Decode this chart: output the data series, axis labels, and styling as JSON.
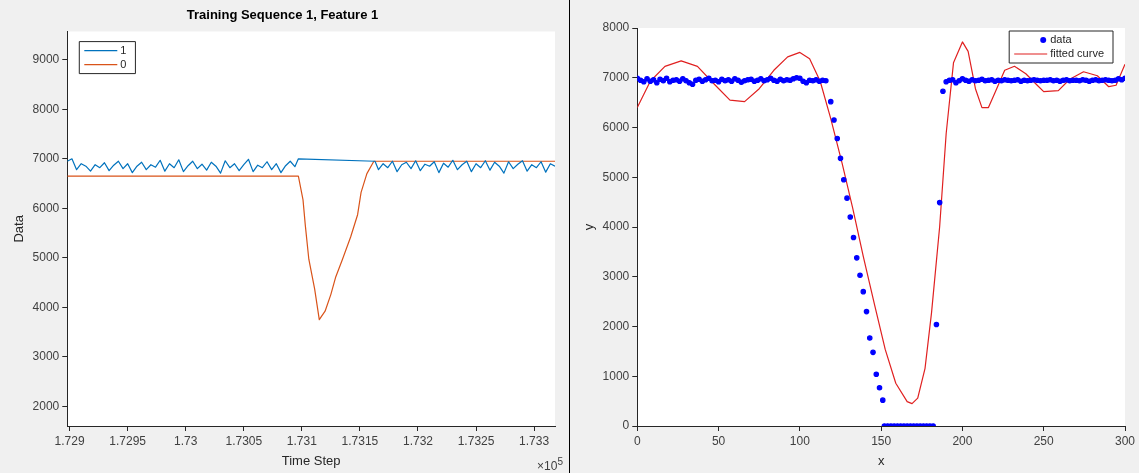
{
  "chart_data": [
    {
      "type": "line",
      "title": "Training Sequence 1, Feature 1",
      "xlabel": "Time Step",
      "ylabel": "Data",
      "xlim": [
        1.72898,
        1.73318
      ],
      "ylim": [
        1600,
        9570
      ],
      "xticks": [
        1.729,
        1.7295,
        1.73,
        1.7305,
        1.731,
        1.7315,
        1.732,
        1.7325,
        1.733
      ],
      "yticks": [
        2000,
        3000,
        4000,
        5000,
        6000,
        7000,
        8000,
        9000
      ],
      "legend": "top left",
      "annotations": [
        "×10$^{5}$"
      ],
      "series": [
        {
          "name": "1",
          "color": "#0072bd",
          "x": [
            1.72898,
            1.72902,
            1.72906,
            1.7291,
            1.72914,
            1.72918,
            1.72922,
            1.72926,
            1.7293,
            1.72934,
            1.72938,
            1.72942,
            1.72946,
            1.7295,
            1.72954,
            1.72958,
            1.72962,
            1.72966,
            1.7297,
            1.72974,
            1.72978,
            1.72982,
            1.72986,
            1.7299,
            1.72994,
            1.72998,
            1.73002,
            1.73006,
            1.7301,
            1.73014,
            1.73018,
            1.73022,
            1.73026,
            1.7303,
            1.73034,
            1.73038,
            1.73042,
            1.73046,
            1.7305,
            1.73054,
            1.73058,
            1.73062,
            1.73066,
            1.7307,
            1.73074,
            1.73078,
            1.73082,
            1.73086,
            1.7309,
            1.73094,
            1.73097,
            1.73163,
            1.73166,
            1.7317,
            1.73174,
            1.73178,
            1.73182,
            1.73186,
            1.7319,
            1.73194,
            1.73198,
            1.73202,
            1.73206,
            1.7321,
            1.73214,
            1.73218,
            1.73222,
            1.73226,
            1.7323,
            1.73234,
            1.73238,
            1.73242,
            1.73246,
            1.7325,
            1.73254,
            1.73258,
            1.73262,
            1.73266,
            1.7327,
            1.73274,
            1.73278,
            1.73282,
            1.73286,
            1.7329,
            1.73294,
            1.73298,
            1.73302,
            1.73306,
            1.7331,
            1.73314,
            1.73318
          ],
          "values": [
            6950,
            7000,
            6780,
            6900,
            6850,
            6750,
            6880,
            6820,
            6920,
            6760,
            6870,
            6950,
            6800,
            6900,
            6720,
            6850,
            6930,
            6780,
            6880,
            6830,
            6970,
            6750,
            6900,
            6820,
            6980,
            6740,
            6860,
            6950,
            6800,
            6890,
            6770,
            6930,
            6850,
            6710,
            6960,
            6820,
            6900,
            6760,
            6880,
            6990,
            6740,
            6870,
            6820,
            6940,
            6780,
            6900,
            6720,
            6860,
            6950,
            6840,
            7000,
            6950,
            6780,
            6900,
            6820,
            6950,
            6740,
            6880,
            6930,
            6800,
            6960,
            6760,
            6890,
            6850,
            6940,
            6720,
            6910,
            6830,
            6970,
            6780,
            6880,
            6950,
            6740,
            6900,
            6820,
            6960,
            6770,
            6930,
            6850,
            6710,
            6940,
            6800,
            6890,
            6960,
            6750,
            6880,
            6820,
            6940,
            6730,
            6900,
            6850
          ]
        },
        {
          "name": "0",
          "color": "#d95319",
          "x": [
            1.72898,
            1.73097,
            1.73101,
            1.73103,
            1.73106,
            1.73111,
            1.73115,
            1.7312,
            1.73125,
            1.73129,
            1.73135,
            1.73142,
            1.73148,
            1.73151,
            1.73156,
            1.73162,
            1.73318
          ],
          "values": [
            6650,
            6650,
            6170,
            5650,
            4970,
            4370,
            3750,
            3920,
            4260,
            4600,
            4970,
            5420,
            5870,
            6320,
            6700,
            6950,
            6950
          ]
        }
      ]
    },
    {
      "type": "line",
      "xlabel": "x",
      "ylabel": "y",
      "xlim": [
        0,
        300
      ],
      "ylim": [
        0,
        8000
      ],
      "xticks": [
        0,
        50,
        100,
        150,
        200,
        250,
        300
      ],
      "yticks": [
        0,
        1000,
        2000,
        3000,
        4000,
        5000,
        6000,
        7000,
        8000
      ],
      "legend": "top right",
      "series": [
        {
          "name": "data",
          "type": "scatter",
          "marker": "circle",
          "color": "#0000ff",
          "x": [
            0,
            2,
            4,
            6,
            8,
            10,
            12,
            14,
            16,
            18,
            20,
            22,
            24,
            26,
            28,
            30,
            32,
            34,
            36,
            38,
            40,
            42,
            44,
            46,
            48,
            50,
            52,
            54,
            56,
            58,
            60,
            62,
            64,
            66,
            68,
            70,
            72,
            74,
            76,
            78,
            80,
            82,
            84,
            86,
            88,
            90,
            92,
            94,
            96,
            98,
            100,
            102,
            104,
            106,
            108,
            110,
            112,
            114,
            116,
            119,
            121,
            123,
            125,
            127,
            129,
            131,
            133,
            135,
            137,
            139,
            141,
            143,
            145,
            147,
            149,
            151,
            152,
            154,
            156,
            158,
            160,
            162,
            164,
            166,
            168,
            170,
            172,
            174,
            176,
            178,
            180,
            182,
            184,
            186,
            188,
            190,
            192,
            194,
            196,
            198,
            200,
            202,
            204,
            206,
            208,
            210,
            212,
            214,
            216,
            218,
            220,
            222,
            224,
            226,
            228,
            230,
            232,
            234,
            236,
            238,
            240,
            242,
            244,
            246,
            248,
            250,
            252,
            254,
            256,
            258,
            260,
            262,
            264,
            266,
            268,
            270,
            272,
            274,
            276,
            278,
            280,
            282,
            284,
            286,
            288,
            290,
            292,
            294,
            296,
            298,
            300
          ],
          "values": [
            6990,
            6950,
            6920,
            6980,
            6930,
            6960,
            6900,
            6970,
            6940,
            6990,
            6920,
            6950,
            6960,
            6930,
            6980,
            6940,
            6900,
            6870,
            6950,
            6970,
            6930,
            6960,
            6990,
            6940,
            6950,
            6920,
            6970,
            6940,
            6960,
            6930,
            6980,
            6950,
            6910,
            6940,
            6960,
            6970,
            6930,
            6950,
            6980,
            6940,
            6960,
            6990,
            6950,
            6930,
            6970,
            6940,
            6960,
            6950,
            6980,
            7000,
            6990,
            6930,
            6900,
            6950,
            6940,
            6960,
            6930,
            6950,
            6940,
            6520,
            6150,
            5780,
            5380,
            4950,
            4580,
            4200,
            3790,
            3380,
            3030,
            2700,
            2300,
            1770,
            1480,
            1040,
            770,
            520,
            0,
            0,
            0,
            0,
            0,
            0,
            0,
            0,
            0,
            0,
            0,
            0,
            0,
            0,
            0,
            0,
            2040,
            4490,
            6730,
            6920,
            6950,
            6960,
            6900,
            6940,
            6980,
            6950,
            6930,
            6960,
            6940,
            6950,
            6970,
            6940,
            6950,
            6960,
            6930,
            6950,
            6940,
            6960,
            6950,
            6940,
            6950,
            6960,
            6930,
            6950,
            6940,
            6950,
            6960,
            6950,
            6940,
            6950,
            6950,
            6960,
            6940,
            6950,
            6930,
            6950,
            6960,
            6940,
            6950,
            6950,
            6940,
            6960,
            6950,
            6930,
            6950,
            6960,
            6940,
            6950,
            6960,
            6950,
            6940,
            6950,
            6980,
            6960,
            6990
          ]
        },
        {
          "name": "fitted curve",
          "color": "#e02020",
          "x": [
            0,
            8,
            17,
            27,
            37,
            48,
            57,
            66,
            75,
            84,
            92.5,
            100,
            106,
            112.5,
            119,
            126,
            132.5,
            139,
            146,
            152.5,
            159,
            166,
            169,
            172.5,
            177,
            181,
            186,
            190,
            194.5,
            200,
            203.5,
            208,
            212,
            216,
            220,
            226,
            232,
            239,
            246,
            250,
            259,
            266,
            274.5,
            283,
            290,
            294.5,
            300
          ],
          "values": [
            6400,
            6930,
            7230,
            7340,
            7230,
            6850,
            6550,
            6520,
            6780,
            7150,
            7420,
            7510,
            7380,
            6930,
            6180,
            5280,
            4380,
            3410,
            2430,
            1540,
            860,
            490,
            450,
            560,
            1160,
            2280,
            4010,
            5880,
            7300,
            7720,
            7530,
            6780,
            6400,
            6400,
            6700,
            7150,
            7230,
            7080,
            6850,
            6720,
            6740,
            6970,
            7120,
            7040,
            6820,
            6850,
            7270
          ]
        }
      ]
    }
  ]
}
